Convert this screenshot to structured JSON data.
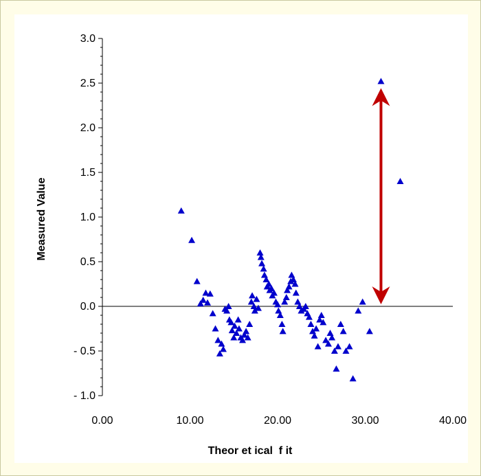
{
  "chart_data": {
    "type": "scatter",
    "xlabel": "Theor et ical  f it",
    "ylabel": "Measured Value",
    "xlim": [
      0,
      40
    ],
    "ylim": [
      -1.0,
      3.0
    ],
    "x_ticks": [
      "0.00",
      "10.00",
      "20.00",
      "30.00",
      "40.00"
    ],
    "y_ticks": [
      "- 1.0",
      "- 0.5",
      "0.0",
      "0.5",
      "1.0",
      "1.5",
      "2.0",
      "2.5",
      "3.0"
    ],
    "grid": false,
    "legend": "none",
    "series": [
      {
        "marker": "triangle",
        "color": "#0000cc",
        "points": [
          [
            9.0,
            1.07
          ],
          [
            10.2,
            0.74
          ],
          [
            10.8,
            0.28
          ],
          [
            11.2,
            0.03
          ],
          [
            11.5,
            0.07
          ],
          [
            11.8,
            0.15
          ],
          [
            12.0,
            0.04
          ],
          [
            12.3,
            0.14
          ],
          [
            12.6,
            -0.08
          ],
          [
            12.9,
            -0.25
          ],
          [
            13.2,
            -0.38
          ],
          [
            13.4,
            -0.53
          ],
          [
            13.6,
            -0.42
          ],
          [
            13.8,
            -0.48
          ],
          [
            14.0,
            -0.03
          ],
          [
            14.2,
            -0.05
          ],
          [
            14.4,
            0.0
          ],
          [
            14.5,
            -0.15
          ],
          [
            14.7,
            -0.18
          ],
          [
            14.8,
            -0.27
          ],
          [
            15.0,
            -0.35
          ],
          [
            15.1,
            -0.22
          ],
          [
            15.3,
            -0.3
          ],
          [
            15.5,
            -0.15
          ],
          [
            15.6,
            -0.25
          ],
          [
            15.8,
            -0.35
          ],
          [
            16.0,
            -0.38
          ],
          [
            16.2,
            -0.32
          ],
          [
            16.4,
            -0.28
          ],
          [
            16.6,
            -0.35
          ],
          [
            16.8,
            -0.2
          ],
          [
            17.0,
            0.05
          ],
          [
            17.1,
            0.12
          ],
          [
            17.3,
            0.0
          ],
          [
            17.4,
            -0.05
          ],
          [
            17.6,
            0.08
          ],
          [
            17.8,
            -0.02
          ],
          [
            18.0,
            0.6
          ],
          [
            18.1,
            0.55
          ],
          [
            18.2,
            0.48
          ],
          [
            18.4,
            0.42
          ],
          [
            18.5,
            0.35
          ],
          [
            18.7,
            0.3
          ],
          [
            18.8,
            0.22
          ],
          [
            19.0,
            0.25
          ],
          [
            19.1,
            0.18
          ],
          [
            19.3,
            0.2
          ],
          [
            19.4,
            0.12
          ],
          [
            19.6,
            0.15
          ],
          [
            19.8,
            0.05
          ],
          [
            20.0,
            0.02
          ],
          [
            20.1,
            -0.05
          ],
          [
            20.3,
            -0.1
          ],
          [
            20.5,
            -0.2
          ],
          [
            20.6,
            -0.28
          ],
          [
            20.8,
            0.05
          ],
          [
            21.0,
            0.1
          ],
          [
            21.1,
            0.18
          ],
          [
            21.3,
            0.22
          ],
          [
            21.5,
            0.28
          ],
          [
            21.6,
            0.35
          ],
          [
            21.8,
            0.3
          ],
          [
            22.0,
            0.25
          ],
          [
            22.1,
            0.15
          ],
          [
            22.3,
            0.05
          ],
          [
            22.5,
            0.0
          ],
          [
            22.7,
            -0.05
          ],
          [
            23.0,
            -0.03
          ],
          [
            23.2,
            0.0
          ],
          [
            23.4,
            -0.08
          ],
          [
            23.6,
            -0.12
          ],
          [
            23.8,
            -0.2
          ],
          [
            24.0,
            -0.28
          ],
          [
            24.2,
            -0.33
          ],
          [
            24.4,
            -0.25
          ],
          [
            24.6,
            -0.45
          ],
          [
            24.8,
            -0.15
          ],
          [
            25.0,
            -0.1
          ],
          [
            25.2,
            -0.18
          ],
          [
            25.5,
            -0.38
          ],
          [
            25.8,
            -0.42
          ],
          [
            26.0,
            -0.3
          ],
          [
            26.2,
            -0.35
          ],
          [
            26.5,
            -0.5
          ],
          [
            26.7,
            -0.7
          ],
          [
            26.9,
            -0.45
          ],
          [
            27.2,
            -0.2
          ],
          [
            27.5,
            -0.28
          ],
          [
            27.8,
            -0.5
          ],
          [
            28.2,
            -0.45
          ],
          [
            28.6,
            -0.81
          ],
          [
            29.2,
            -0.05
          ],
          [
            29.7,
            0.05
          ],
          [
            30.5,
            -0.28
          ],
          [
            31.8,
            2.52
          ],
          [
            34.0,
            1.4
          ]
        ]
      }
    ],
    "annotations": [
      {
        "type": "double-arrow",
        "x": 31.8,
        "y_from": 0.0,
        "y_to": 2.52,
        "color": "#c00000"
      }
    ]
  }
}
